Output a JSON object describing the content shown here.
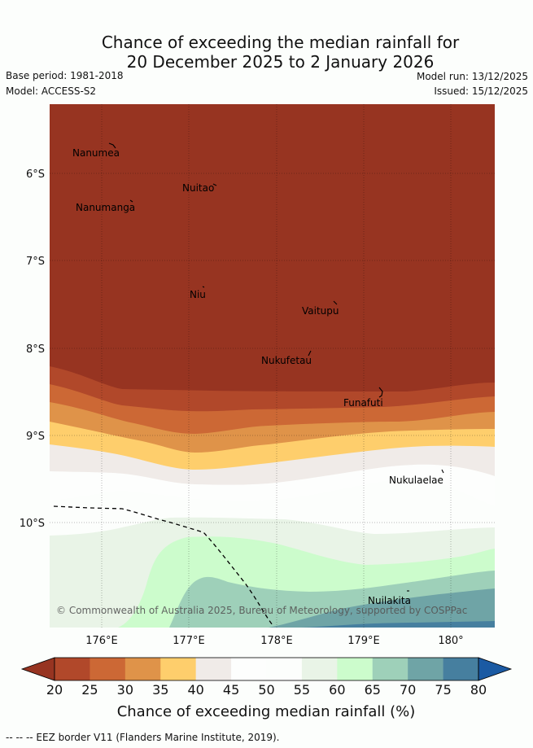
{
  "title": {
    "line1": "Chance of exceeding the median rainfall for",
    "line2": "20 December 2025 to 2 January 2026"
  },
  "meta": {
    "base_period": "Base period: 1981-2018",
    "model": "Model: ACCESS-S2",
    "model_run": "Model run: 13/12/2025",
    "issued": "Issued: 15/12/2025"
  },
  "map": {
    "lat_labels": [
      "6°S",
      "7°S",
      "8°S",
      "9°S",
      "10°S"
    ],
    "lon_labels": [
      "176°E",
      "177°E",
      "178°E",
      "179°E",
      "180°"
    ],
    "places": [
      "Nanumea",
      "Nuitao",
      "Nanumanga",
      "Niu",
      "Vaitupu",
      "Nukufetau",
      "Funafuti",
      "Nukulaelae",
      "Nuilakita"
    ],
    "copyright": "© Commonwealth of Australia 2025, Bureau of Meteorology, supported by COSPPac"
  },
  "colorbar": {
    "ticks": [
      "20",
      "25",
      "30",
      "35",
      "40",
      "45",
      "50",
      "55",
      "60",
      "65",
      "70",
      "75",
      "80"
    ],
    "colors": [
      "#973421",
      "#b1482a",
      "#cc6835",
      "#df9349",
      "#fece6c",
      "#f0ebe8",
      "#fdfefd",
      "#fcfefc",
      "#e9f4e7",
      "#ccfccc",
      "#9ed0b9",
      "#6fa4a6",
      "#467f9f",
      "#1b5aa3"
    ],
    "title": "Chance of exceeding median rainfall (%)"
  },
  "footer": {
    "legend": "--  --  -- EEZ border V11 (Flanders Marine Institute, 2019)."
  }
}
